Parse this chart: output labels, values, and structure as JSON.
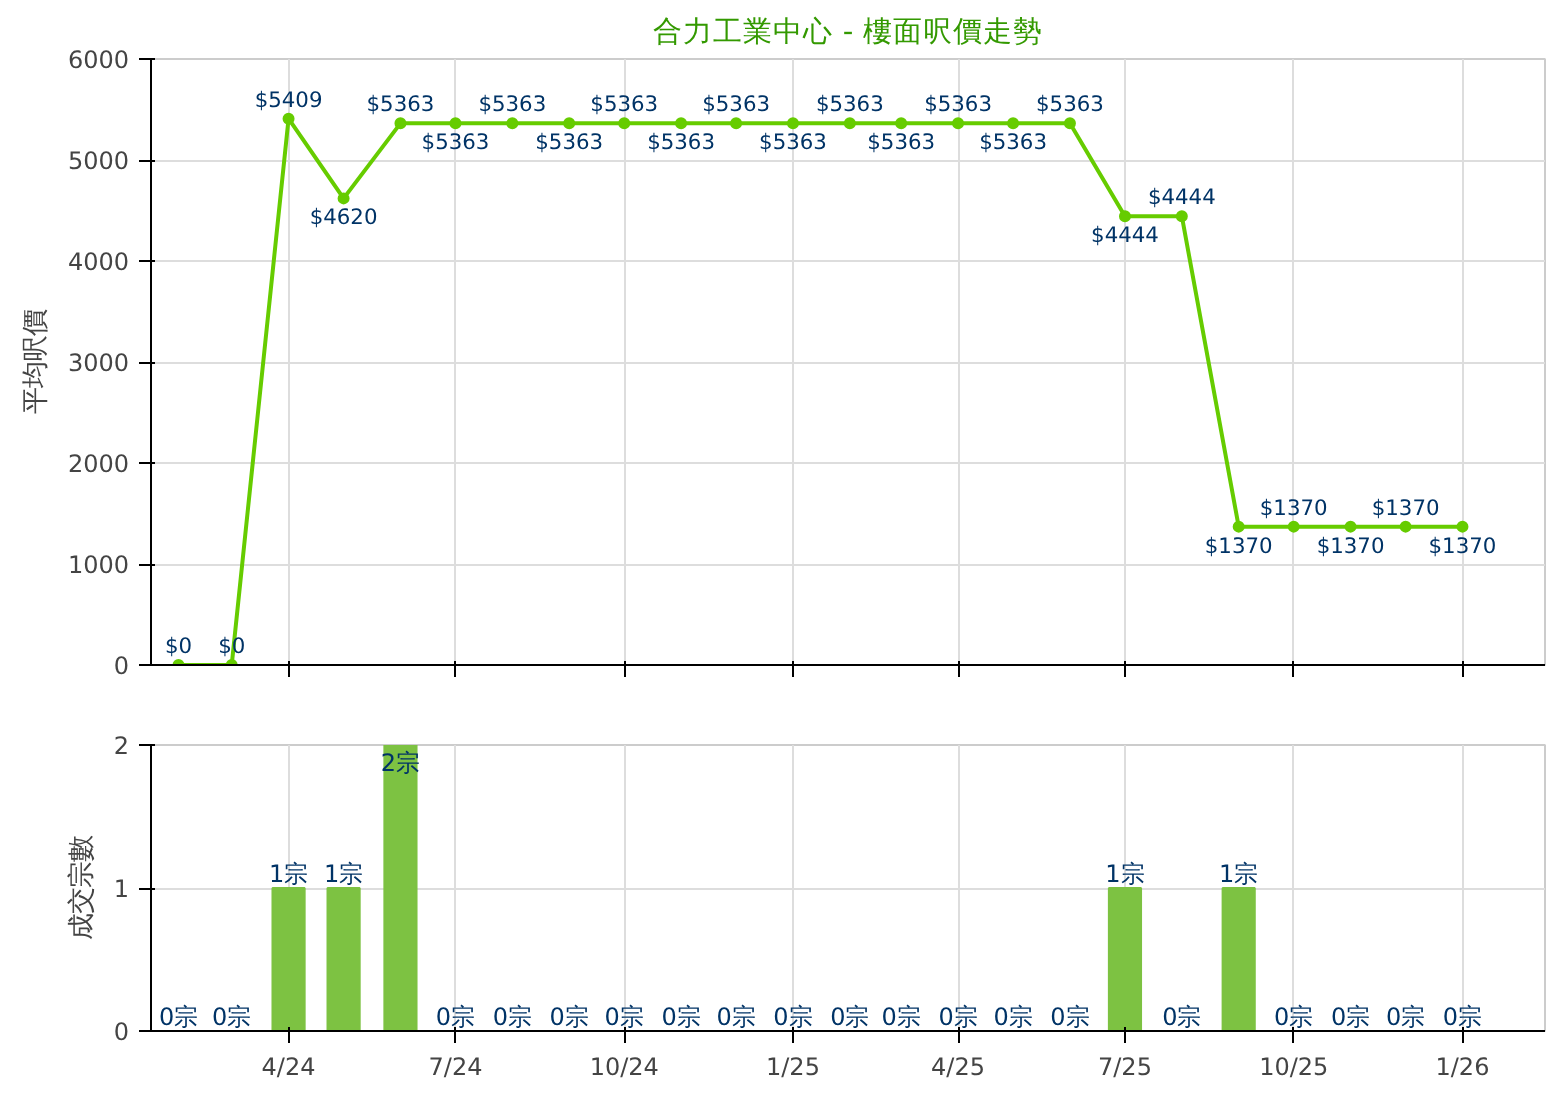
{
  "chart_data": [
    {
      "type": "line",
      "title": "合力工業中心 - 樓面呎價走勢",
      "ylabel": "平均呎價",
      "x": [
        "2024-02",
        "2024-03",
        "2024-04",
        "2024-05",
        "2024-06",
        "2024-07",
        "2024-08",
        "2024-09",
        "2024-10",
        "2024-11",
        "2024-12",
        "2025-01",
        "2025-02",
        "2025-03",
        "2025-04",
        "2025-05",
        "2025-06",
        "2025-07",
        "2025-08",
        "2025-09",
        "2025-10",
        "2025-11",
        "2025-12",
        "2026-01"
      ],
      "series": [
        {
          "color": "#66cc00",
          "values": [
            0,
            0,
            5409,
            4620,
            5363,
            5363,
            5363,
            5363,
            5363,
            5363,
            5363,
            5363,
            5363,
            5363,
            5363,
            5363,
            5363,
            4444,
            4444,
            1370,
            1370,
            1370,
            1370,
            1370
          ],
          "value_labels": [
            "$0",
            "$0",
            "$5409",
            "$4620",
            "$5363",
            "$5363",
            "$5363",
            "$5363",
            "$5363",
            "$5363",
            "$5363",
            "$5363",
            "$5363",
            "$5363",
            "$5363",
            "$5363",
            "$5363",
            "$4444",
            "$4444",
            "$1370",
            "$1370",
            "$1370",
            "$1370",
            "$1370"
          ]
        }
      ],
      "xlim": [
        "2024-01-17",
        "2026-02-15"
      ],
      "xticks": [
        {
          "value": "2024-04",
          "label": null
        },
        {
          "value": "2024-07",
          "label": null
        },
        {
          "value": "2024-10",
          "label": null
        },
        {
          "value": "2025-01",
          "label": null
        },
        {
          "value": "2025-04",
          "label": null
        },
        {
          "value": "2025-07",
          "label": null
        },
        {
          "value": "2025-10",
          "label": null
        },
        {
          "value": "2026-01",
          "label": null
        }
      ],
      "ylim": [
        0,
        6000
      ],
      "yticks": [
        0,
        1000,
        2000,
        3000,
        4000,
        5000,
        6000
      ],
      "grid": true,
      "marker": "circle",
      "tick_labels": "y"
    },
    {
      "type": "bar",
      "ylabel": "成交宗數",
      "x": [
        "2024-02",
        "2024-03",
        "2024-04",
        "2024-05",
        "2024-06",
        "2024-07",
        "2024-08",
        "2024-09",
        "2024-10",
        "2024-11",
        "2024-12",
        "2025-01",
        "2025-02",
        "2025-03",
        "2025-04",
        "2025-05",
        "2025-06",
        "2025-07",
        "2025-08",
        "2025-09",
        "2025-10",
        "2025-11",
        "2025-12",
        "2026-01"
      ],
      "series": [
        {
          "color": "#7dc242",
          "values": [
            0,
            0,
            1,
            1,
            2,
            0,
            0,
            0,
            0,
            0,
            0,
            0,
            0,
            0,
            0,
            0,
            0,
            1,
            0,
            1,
            0,
            0,
            0,
            0
          ],
          "value_labels": [
            "0宗",
            "0宗",
            "1宗",
            "1宗",
            "2宗",
            "0宗",
            "0宗",
            "0宗",
            "0宗",
            "0宗",
            "0宗",
            "0宗",
            "0宗",
            "0宗",
            "0宗",
            "0宗",
            "0宗",
            "1宗",
            "0宗",
            "1宗",
            "0宗",
            "0宗",
            "0宗",
            "0宗"
          ]
        }
      ],
      "xlim": [
        "2024-01-17",
        "2026-02-15"
      ],
      "xticks": [
        {
          "value": "2024-04",
          "label": "4/24"
        },
        {
          "value": "2024-07",
          "label": "7/24"
        },
        {
          "value": "2024-10",
          "label": "10/24"
        },
        {
          "value": "2025-01",
          "label": "1/25"
        },
        {
          "value": "2025-04",
          "label": "4/25"
        },
        {
          "value": "2025-07",
          "label": "7/25"
        },
        {
          "value": "2025-10",
          "label": "10/25"
        },
        {
          "value": "2026-01",
          "label": "1/26"
        }
      ],
      "ylim": [
        0,
        2
      ],
      "yticks": [
        0,
        1,
        2
      ],
      "grid": true
    }
  ]
}
